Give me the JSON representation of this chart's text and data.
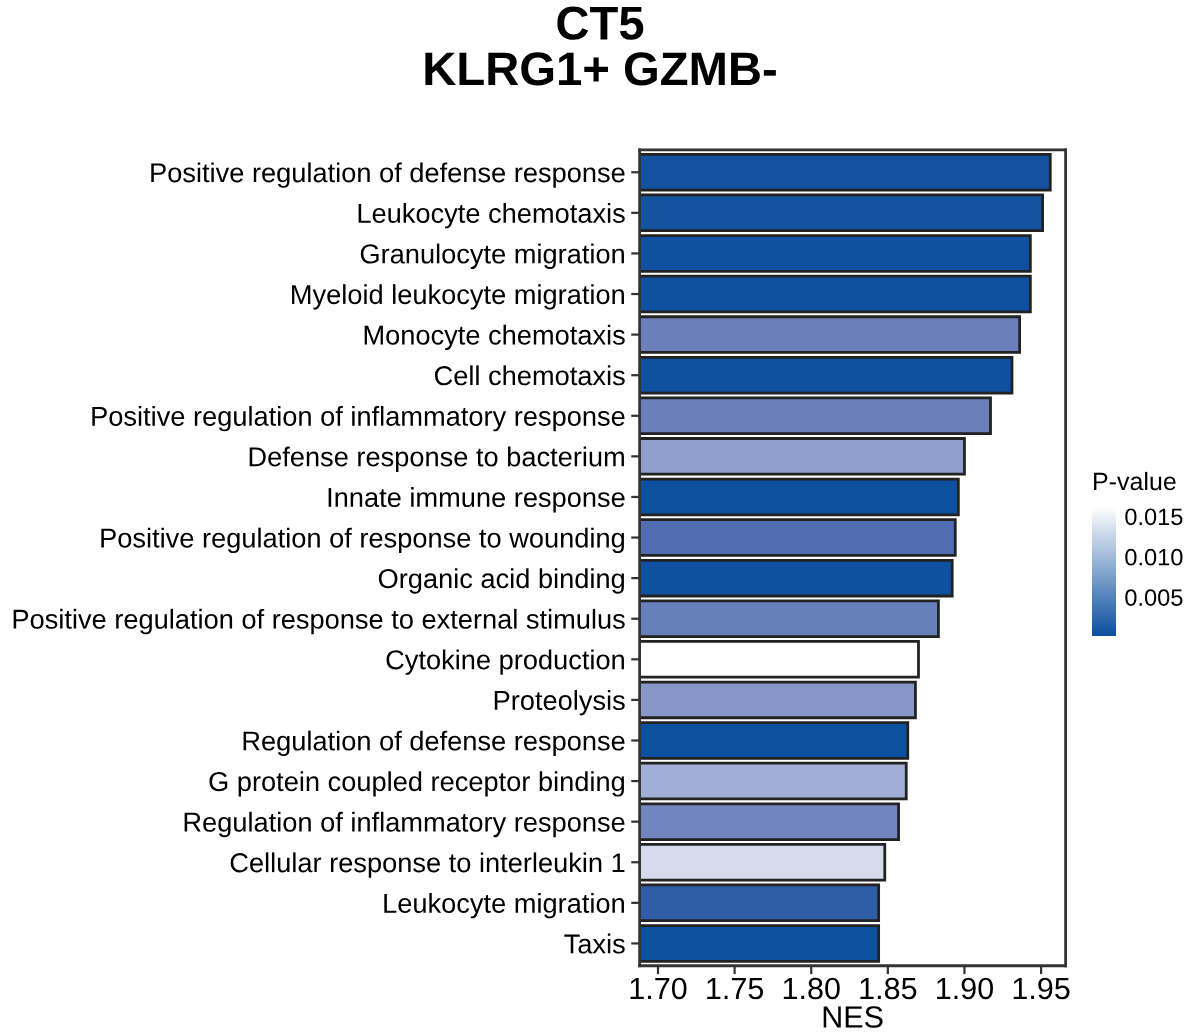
{
  "chart_data": {
    "type": "bar",
    "orientation": "horizontal",
    "title": "CT5\nKLRG1+ GZMB-",
    "xlabel": "NES",
    "clabel": "P-value",
    "categories": [
      "Positive regulation of defense response",
      "Leukocyte chemotaxis",
      "Granulocyte migration",
      "Myeloid leukocyte migration",
      "Monocyte chemotaxis",
      "Cell chemotaxis",
      "Positive regulation of inflammatory response",
      "Defense response to bacterium",
      "Innate immune response",
      "Positive regulation of response to wounding",
      "Organic acid binding",
      "Positive regulation of response to external stimulus",
      "Cytokine production",
      "Proteolysis",
      "Regulation of defense response",
      "G protein coupled receptor binding",
      "Regulation of inflammatory response",
      "Cellular response to interleukin 1",
      "Leukocyte migration",
      "Taxis"
    ],
    "values": [
      1.956,
      1.951,
      1.943,
      1.943,
      1.936,
      1.931,
      1.917,
      1.9,
      1.896,
      1.894,
      1.892,
      1.883,
      1.87,
      1.868,
      1.863,
      1.862,
      1.857,
      1.848,
      1.844,
      1.844
    ],
    "colors": [
      "#1252a0",
      "#1353a0",
      "#0f51a0",
      "#0f51a0",
      "#6b80bb",
      "#0f51a0",
      "#6b80bb",
      "#8f9fcd",
      "#0d50a0",
      "#4f6db0",
      "#0e51a0",
      "#6680ba",
      "#ffffff",
      "#8797c8",
      "#0c50a0",
      "#a1aed5",
      "#7385bf",
      "#d5dbeb",
      "#2f5ea7",
      "#0c50a0"
    ],
    "xlim": [
      1.688,
      1.966
    ],
    "xticks": [
      {
        "value": 1.7,
        "label": "1.70"
      },
      {
        "value": 1.75,
        "label": "1.75"
      },
      {
        "value": 1.8,
        "label": "1.80"
      },
      {
        "value": 1.85,
        "label": "1.85"
      },
      {
        "value": 1.9,
        "label": "1.90"
      },
      {
        "value": 1.95,
        "label": "1.95"
      }
    ],
    "clim": [
      0.0002,
      0.0162
    ],
    "cticks": [
      {
        "value": 0.005,
        "label": "0.005"
      },
      {
        "value": 0.01,
        "label": "0.010"
      },
      {
        "value": 0.015,
        "label": "0.015"
      }
    ],
    "grid": false
  }
}
